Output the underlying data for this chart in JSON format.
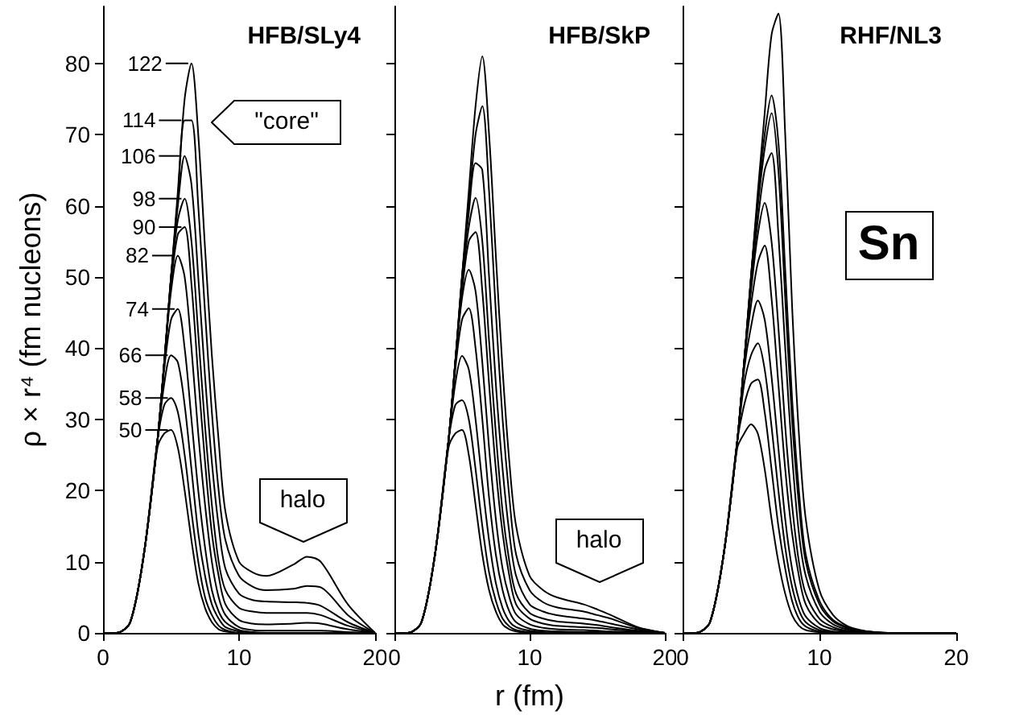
{
  "chart_data": [
    {
      "type": "line",
      "title": "HFB/SLy4",
      "ylabel": "ρ × r⁴ (fm nucleons)",
      "marker": "none",
      "grid": false,
      "legend": "top left",
      "annotations": [
        "\"core\"",
        "halo"
      ],
      "xlim": [
        0,
        20
      ],
      "xticks": [
        0,
        10,
        20
      ],
      "ylim": [
        0,
        88
      ],
      "yticks": [
        0,
        10,
        20,
        30,
        40,
        50,
        60,
        70,
        80
      ],
      "x": [
        0,
        1,
        2,
        3,
        4,
        4.5,
        5,
        5.5,
        6,
        6.5,
        7,
        7.5,
        8,
        8.5,
        9,
        10,
        11,
        12,
        14,
        15,
        16,
        18,
        20
      ],
      "series": [
        {
          "name": "50",
          "color": "#000000",
          "values": [
            0,
            0,
            1.5,
            11,
            26,
            28,
            28.5,
            26,
            20,
            13,
            7,
            3.5,
            1.5,
            0.5,
            0.2,
            0,
            0,
            0,
            0,
            0,
            0,
            0,
            0
          ]
        },
        {
          "name": "58",
          "color": "#000000",
          "values": [
            0,
            0,
            1.5,
            11,
            27,
            32,
            33,
            31,
            25,
            17,
            10,
            5,
            2.5,
            1,
            0.4,
            0,
            0,
            0,
            0,
            0,
            0,
            0,
            0
          ]
        },
        {
          "name": "66",
          "color": "#000000",
          "values": [
            0,
            0,
            1.5,
            11,
            27,
            35,
            39,
            38,
            32,
            23,
            14,
            8,
            4,
            2,
            0.8,
            0.2,
            0,
            0,
            0,
            0,
            0,
            0,
            0
          ]
        },
        {
          "name": "74",
          "color": "#000000",
          "values": [
            0,
            0,
            1.5,
            11,
            27,
            37,
            44,
            45.5,
            40,
            30,
            20,
            12,
            6,
            3,
            1.5,
            0.4,
            0.1,
            0,
            0,
            0,
            0,
            0,
            0
          ]
        },
        {
          "name": "82",
          "color": "#000000",
          "values": [
            0,
            0,
            1.5,
            11,
            27,
            38,
            48,
            53,
            50,
            40,
            28,
            18,
            10,
            5,
            2.5,
            0.8,
            0.4,
            0.3,
            0.3,
            0.3,
            0.3,
            0.1,
            0
          ]
        },
        {
          "name": "90",
          "color": "#000000",
          "values": [
            0,
            0,
            1.5,
            11,
            27,
            38,
            49,
            56,
            57,
            49,
            36,
            24,
            14,
            8,
            4,
            1.8,
            1.3,
            1.2,
            1.3,
            1.4,
            1.3,
            0.5,
            0
          ]
        },
        {
          "name": "98",
          "color": "#000000",
          "values": [
            0,
            0,
            1.5,
            11,
            27,
            38,
            50,
            58,
            61,
            55,
            42,
            29,
            18,
            10,
            6,
            3.5,
            3,
            2.8,
            2.8,
            2.8,
            2.5,
            1,
            0
          ]
        },
        {
          "name": "106",
          "color": "#000000",
          "values": [
            0,
            0,
            1.5,
            11,
            27,
            38,
            50,
            60,
            67,
            63,
            50,
            36,
            24,
            15,
            9,
            5.5,
            4.6,
            4.4,
            4.3,
            4.2,
            3.8,
            1.5,
            0
          ]
        },
        {
          "name": "114",
          "color": "#000000",
          "values": [
            0,
            0,
            1.5,
            11,
            27,
            38,
            50,
            61,
            72,
            72,
            60,
            45,
            31,
            20,
            13,
            8,
            6.5,
            6,
            6.2,
            6.6,
            6.4,
            2.5,
            0
          ]
        },
        {
          "name": "122",
          "color": "#000000",
          "values": [
            0,
            0,
            1.5,
            11,
            27,
            38,
            50,
            62,
            75,
            80,
            70,
            54,
            39,
            27,
            17,
            10,
            8.5,
            8,
            9.6,
            10.7,
            10,
            4,
            0
          ]
        }
      ]
    },
    {
      "type": "line",
      "title": "HFB/SkP",
      "xlabel": "r (fm)",
      "marker": "none",
      "grid": false,
      "tick_labels": "x",
      "annotations": [
        "halo"
      ],
      "xlim": [
        0,
        20
      ],
      "xticks": [
        0,
        10,
        20
      ],
      "ylim": [
        0,
        88
      ],
      "yticks": [
        0,
        10,
        20,
        30,
        40,
        50,
        60,
        70,
        80
      ],
      "x": [
        0,
        1,
        2,
        3,
        4,
        4.5,
        5,
        5.5,
        6,
        6.5,
        7,
        7.5,
        8,
        8.5,
        9,
        10,
        11,
        12,
        14,
        15,
        16,
        18,
        20
      ],
      "series": [
        {
          "color": "#000000",
          "values": [
            0,
            0,
            1.5,
            11,
            26,
            28,
            28.5,
            25,
            18,
            11,
            6,
            3,
            1.2,
            0.5,
            0.2,
            0,
            0,
            0,
            0,
            0,
            0,
            0,
            0
          ]
        },
        {
          "color": "#000000",
          "values": [
            0,
            0,
            1.5,
            11,
            27,
            32,
            32.7,
            30,
            23,
            15,
            8.5,
            4.5,
            2,
            0.9,
            0.4,
            0.1,
            0,
            0,
            0,
            0,
            0,
            0,
            0
          ]
        },
        {
          "color": "#000000",
          "values": [
            0,
            0,
            1.5,
            11,
            27,
            35,
            38.9,
            37,
            30,
            21,
            13,
            7,
            3.5,
            1.6,
            0.8,
            0.3,
            0.1,
            0,
            0,
            0,
            0,
            0,
            0
          ]
        },
        {
          "color": "#000000",
          "values": [
            0,
            0,
            1.5,
            11,
            27,
            37,
            44,
            45.6,
            40,
            30,
            19,
            11,
            6,
            3,
            1.5,
            0.6,
            0.3,
            0.2,
            0.1,
            0.1,
            0,
            0,
            0
          ]
        },
        {
          "color": "#000000",
          "values": [
            0,
            0,
            1.5,
            11,
            27,
            38,
            47,
            51,
            48,
            38,
            26,
            16,
            9,
            5,
            2.6,
            1.2,
            0.7,
            0.5,
            0.4,
            0.3,
            0.2,
            0.1,
            0
          ]
        },
        {
          "color": "#000000",
          "values": [
            0,
            0,
            1.5,
            11,
            27,
            38,
            48,
            55,
            56.3,
            48,
            35,
            23,
            14,
            8,
            4,
            2,
            1.3,
            1,
            0.8,
            0.7,
            0.5,
            0.2,
            0
          ]
        },
        {
          "color": "#000000",
          "values": [
            0,
            0,
            1.5,
            11,
            27,
            38,
            49,
            57,
            61.1,
            55,
            41,
            28,
            17,
            10,
            5.5,
            2.8,
            2,
            1.6,
            1.3,
            1.1,
            0.8,
            0.3,
            0
          ]
        },
        {
          "color": "#000000",
          "values": [
            0,
            0,
            1.5,
            11,
            27,
            38,
            50,
            59,
            66,
            65,
            50,
            35,
            23,
            14,
            8,
            4,
            3,
            2.5,
            2,
            1.7,
            1.3,
            0.5,
            0
          ]
        },
        {
          "color": "#000000",
          "values": [
            0,
            0,
            1.5,
            11,
            27,
            38,
            50,
            60,
            70,
            74,
            62,
            45,
            30,
            19,
            11,
            6,
            4.3,
            3.6,
            3,
            2.5,
            2,
            0.7,
            0
          ]
        },
        {
          "color": "#000000",
          "values": [
            0,
            0,
            1.5,
            11,
            27,
            38,
            50,
            62,
            74,
            81,
            70,
            53,
            37,
            24,
            15,
            8,
            6,
            5,
            4,
            3.3,
            2.5,
            0.8,
            0
          ]
        }
      ]
    },
    {
      "type": "line",
      "title": "RHF/NL3",
      "marker": "none",
      "grid": false,
      "tick_labels": "x",
      "annotations": [
        "Sn"
      ],
      "xlim": [
        0,
        20
      ],
      "xticks": [
        0,
        10,
        20
      ],
      "ylim": [
        0,
        88
      ],
      "yticks": [
        0,
        10,
        20,
        30,
        40,
        50,
        60,
        70,
        80
      ],
      "x": [
        0,
        1,
        2,
        3,
        4,
        4.5,
        5,
        5.5,
        6,
        6.5,
        7,
        7.5,
        8,
        8.5,
        9,
        10,
        11,
        12,
        13,
        14,
        15,
        16,
        18,
        20
      ],
      "series": [
        {
          "color": "#000000",
          "values": [
            0,
            0,
            1.5,
            11,
            26,
            28,
            29.3,
            28,
            23,
            16,
            10,
            5.5,
            2.5,
            1,
            0.4,
            0.1,
            0,
            0,
            0,
            0,
            0,
            0,
            0,
            0
          ]
        },
        {
          "color": "#000000",
          "values": [
            0,
            0,
            1.5,
            11,
            27,
            32,
            35,
            35.6,
            31,
            23,
            15,
            9,
            4.5,
            2,
            0.9,
            0.2,
            0,
            0,
            0,
            0,
            0,
            0,
            0,
            0
          ]
        },
        {
          "color": "#000000",
          "values": [
            0,
            0,
            1.5,
            11,
            27,
            35,
            39,
            40.7,
            37,
            29,
            20,
            12,
            6.5,
            3.2,
            1.5,
            0.4,
            0.1,
            0,
            0,
            0,
            0,
            0,
            0,
            0
          ]
        },
        {
          "color": "#000000",
          "values": [
            0,
            0,
            1.5,
            11,
            27,
            37,
            43,
            46.7,
            44,
            36,
            26,
            16,
            9,
            4.7,
            2.3,
            0.7,
            0.2,
            0.1,
            0,
            0,
            0,
            0,
            0,
            0
          ]
        },
        {
          "color": "#000000",
          "values": [
            0,
            0,
            1.5,
            11,
            27,
            38,
            46,
            52,
            54.4,
            47,
            35,
            23,
            14,
            8,
            4,
            1.3,
            0.5,
            0.2,
            0.1,
            0,
            0,
            0,
            0,
            0
          ]
        },
        {
          "color": "#000000",
          "values": [
            0,
            0,
            1.5,
            11,
            27,
            38,
            48,
            56,
            60.4,
            55,
            43,
            29,
            18,
            10,
            5.5,
            2,
            0.8,
            0.3,
            0.1,
            0,
            0,
            0,
            0,
            0
          ]
        },
        {
          "color": "#000000",
          "values": [
            0,
            0,
            1.5,
            11,
            27,
            38,
            49,
            58,
            65,
            67.4,
            56,
            40,
            25,
            14,
            8,
            3,
            1.2,
            0.5,
            0.2,
            0.1,
            0,
            0,
            0,
            0
          ]
        },
        {
          "color": "#000000",
          "values": [
            0,
            0,
            1.5,
            11,
            27,
            38,
            50,
            60,
            68,
            73,
            65,
            47,
            30,
            18,
            10,
            4,
            1.6,
            0.7,
            0.3,
            0.1,
            0,
            0,
            0,
            0
          ]
        },
        {
          "color": "#000000",
          "values": [
            0,
            0,
            1.5,
            11,
            27,
            38,
            50,
            61,
            70,
            75.5,
            69,
            51,
            33,
            20,
            11,
            4.5,
            1.8,
            0.8,
            0.3,
            0.1,
            0,
            0,
            0,
            0
          ]
        },
        {
          "color": "#000000",
          "values": [
            0,
            0,
            1.5,
            11,
            27,
            38,
            50,
            62,
            73,
            84,
            87,
            70,
            46,
            28,
            16,
            6,
            2.5,
            1,
            0.4,
            0.1,
            0,
            0,
            0,
            0
          ]
        }
      ]
    }
  ]
}
